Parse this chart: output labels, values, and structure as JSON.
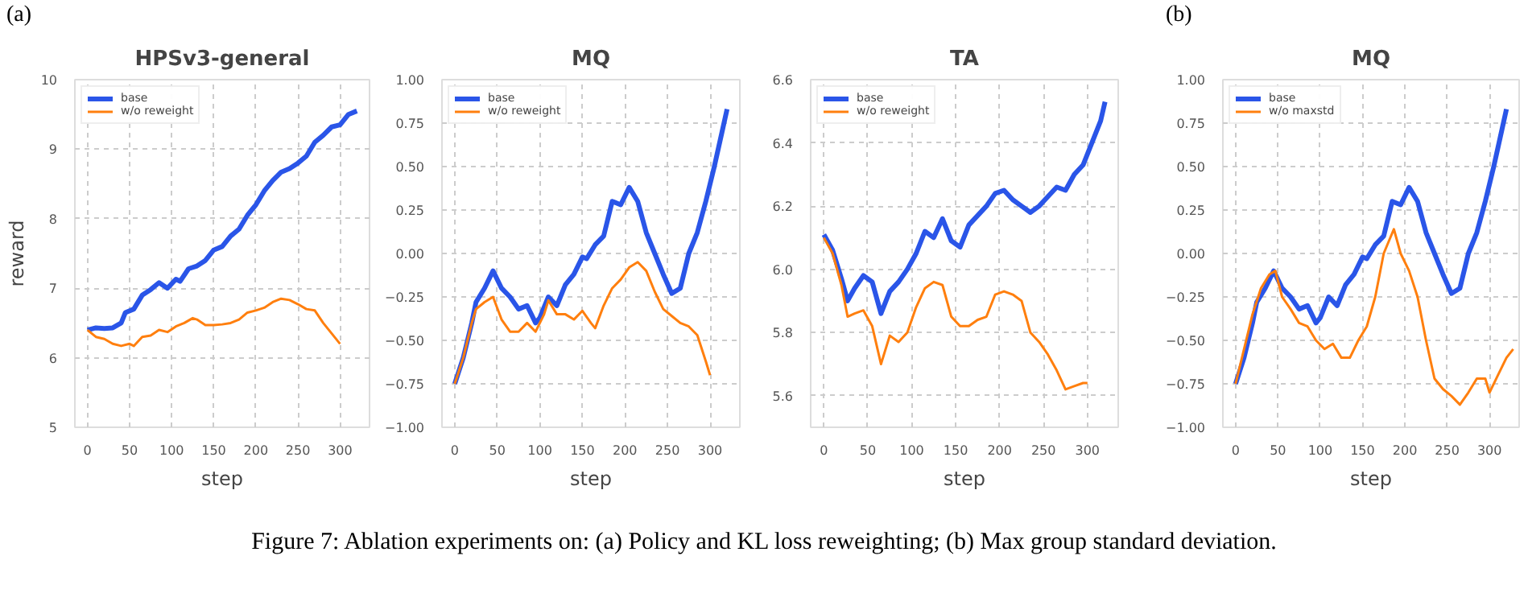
{
  "chart_data": [
    {
      "type": "line",
      "title": "HPSv3-general",
      "xlabel": "step",
      "ylabel": "reward",
      "annotations": [
        "(a)"
      ],
      "xlim": [
        -15,
        335
      ],
      "ylim": [
        5,
        10
      ],
      "xticks": [
        0,
        50,
        100,
        150,
        200,
        250,
        300
      ],
      "yticks": [
        5,
        6,
        7,
        8,
        9,
        10
      ],
      "grid": true,
      "legend": "top left",
      "line_style": "solid",
      "marker": "none",
      "series": [
        {
          "name": "base",
          "color": "#2a55e8",
          "x": [
            0,
            10,
            20,
            30,
            40,
            45,
            55,
            65,
            75,
            85,
            95,
            105,
            110,
            120,
            130,
            140,
            150,
            160,
            170,
            180,
            190,
            200,
            210,
            220,
            230,
            240,
            250,
            260,
            270,
            280,
            290,
            300,
            310,
            320
          ],
          "values": [
            6.4,
            6.43,
            6.42,
            6.43,
            6.5,
            6.65,
            6.7,
            6.9,
            6.98,
            7.08,
            7.0,
            7.13,
            7.1,
            7.28,
            7.32,
            7.4,
            7.55,
            7.6,
            7.75,
            7.85,
            8.05,
            8.2,
            8.4,
            8.55,
            8.67,
            8.72,
            8.8,
            8.9,
            9.1,
            9.2,
            9.32,
            9.35,
            9.5,
            9.55
          ]
        },
        {
          "name": "w/o reweight",
          "color": "#ff7f0e",
          "x": [
            0,
            10,
            20,
            30,
            40,
            50,
            55,
            65,
            75,
            85,
            95,
            105,
            115,
            125,
            130,
            140,
            150,
            160,
            170,
            180,
            190,
            200,
            210,
            220,
            230,
            240,
            250,
            260,
            270,
            280,
            290,
            300
          ],
          "values": [
            6.4,
            6.3,
            6.27,
            6.2,
            6.17,
            6.2,
            6.17,
            6.3,
            6.32,
            6.4,
            6.37,
            6.45,
            6.5,
            6.57,
            6.55,
            6.47,
            6.47,
            6.48,
            6.5,
            6.55,
            6.65,
            6.68,
            6.72,
            6.8,
            6.85,
            6.83,
            6.77,
            6.7,
            6.68,
            6.5,
            6.35,
            6.2
          ]
        }
      ]
    },
    {
      "type": "line",
      "title": "MQ",
      "xlabel": "step",
      "xlim": [
        -15,
        335
      ],
      "ylim": [
        -1,
        1
      ],
      "xticks": [
        0,
        50,
        100,
        150,
        200,
        250,
        300
      ],
      "yticks": [
        {
          "value": -1,
          "label": "−1.00"
        },
        {
          "value": -0.75,
          "label": "−0.75"
        },
        {
          "value": -0.5,
          "label": "−0.50"
        },
        {
          "value": -0.25,
          "label": "−0.25"
        },
        {
          "value": 0,
          "label": "0.00"
        },
        {
          "value": 0.25,
          "label": "0.25"
        },
        {
          "value": 0.5,
          "label": "0.50"
        },
        {
          "value": 0.75,
          "label": "0.75"
        },
        {
          "value": 1,
          "label": "1.00"
        }
      ],
      "grid": true,
      "legend": "top left",
      "line_style": "solid",
      "marker": "none",
      "series": [
        {
          "name": "base",
          "color": "#2a55e8",
          "x": [
            0,
            10,
            20,
            25,
            35,
            45,
            55,
            65,
            75,
            85,
            95,
            100,
            110,
            120,
            130,
            140,
            150,
            155,
            165,
            175,
            185,
            195,
            205,
            215,
            225,
            235,
            245,
            255,
            265,
            275,
            285,
            295,
            305,
            315,
            320
          ],
          "values": [
            -0.75,
            -0.6,
            -0.4,
            -0.28,
            -0.2,
            -0.1,
            -0.2,
            -0.25,
            -0.32,
            -0.3,
            -0.4,
            -0.37,
            -0.25,
            -0.3,
            -0.18,
            -0.12,
            -0.02,
            -0.03,
            0.05,
            0.1,
            0.3,
            0.28,
            0.38,
            0.3,
            0.12,
            0.0,
            -0.12,
            -0.23,
            -0.2,
            0.0,
            0.12,
            0.3,
            0.5,
            0.72,
            0.83
          ]
        },
        {
          "name": "w/o reweight",
          "color": "#ff7f0e",
          "x": [
            0,
            10,
            20,
            25,
            35,
            45,
            55,
            65,
            75,
            85,
            95,
            105,
            110,
            120,
            130,
            140,
            150,
            160,
            165,
            175,
            185,
            195,
            205,
            215,
            225,
            235,
            245,
            255,
            265,
            275,
            285,
            295,
            300
          ],
          "values": [
            -0.75,
            -0.6,
            -0.4,
            -0.32,
            -0.28,
            -0.25,
            -0.38,
            -0.45,
            -0.45,
            -0.4,
            -0.45,
            -0.35,
            -0.27,
            -0.35,
            -0.35,
            -0.38,
            -0.33,
            -0.4,
            -0.43,
            -0.3,
            -0.2,
            -0.15,
            -0.08,
            -0.05,
            -0.1,
            -0.22,
            -0.32,
            -0.36,
            -0.4,
            -0.42,
            -0.47,
            -0.62,
            -0.7
          ]
        }
      ]
    },
    {
      "type": "line",
      "title": "TA",
      "xlabel": "step",
      "xlim": [
        -15,
        335
      ],
      "ylim": [
        5.5,
        6.6
      ],
      "xticks": [
        0,
        50,
        100,
        150,
        200,
        250,
        300
      ],
      "yticks": [
        5.6,
        5.8,
        {
          "value": 6,
          "label": "6.0"
        },
        6.2,
        6.4,
        6.6
      ],
      "grid": true,
      "legend": "top left",
      "line_style": "solid",
      "marker": "none",
      "series": [
        {
          "name": "base",
          "color": "#2a55e8",
          "x": [
            0,
            10,
            20,
            27,
            35,
            45,
            55,
            65,
            75,
            85,
            95,
            105,
            115,
            125,
            135,
            145,
            155,
            165,
            175,
            185,
            195,
            205,
            215,
            225,
            235,
            245,
            255,
            265,
            275,
            285,
            295,
            305,
            315,
            320
          ],
          "values": [
            6.11,
            6.06,
            5.97,
            5.9,
            5.94,
            5.98,
            5.96,
            5.86,
            5.93,
            5.96,
            6.0,
            6.05,
            6.12,
            6.1,
            6.16,
            6.09,
            6.07,
            6.14,
            6.17,
            6.2,
            6.24,
            6.25,
            6.22,
            6.2,
            6.18,
            6.2,
            6.23,
            6.26,
            6.25,
            6.3,
            6.33,
            6.4,
            6.47,
            6.53
          ]
        },
        {
          "name": "w/o reweight",
          "color": "#ff7f0e",
          "x": [
            0,
            10,
            20,
            27,
            35,
            45,
            55,
            65,
            75,
            85,
            95,
            105,
            115,
            125,
            135,
            145,
            155,
            165,
            175,
            185,
            195,
            205,
            215,
            225,
            235,
            245,
            255,
            265,
            275,
            285,
            295,
            300
          ],
          "values": [
            6.1,
            6.05,
            5.95,
            5.85,
            5.86,
            5.87,
            5.82,
            5.7,
            5.79,
            5.77,
            5.8,
            5.88,
            5.94,
            5.96,
            5.95,
            5.85,
            5.82,
            5.82,
            5.84,
            5.85,
            5.92,
            5.93,
            5.92,
            5.9,
            5.8,
            5.77,
            5.73,
            5.68,
            5.62,
            5.63,
            5.64,
            5.64
          ]
        }
      ]
    },
    {
      "type": "line",
      "title": "MQ",
      "xlabel": "step",
      "annotations": [
        "(b)",
        "Figure 7: Ablation experiments on: (a) Policy and KL loss reweighting; (b) Max group standard deviation."
      ],
      "xlim": [
        -15,
        335
      ],
      "ylim": [
        -1,
        1
      ],
      "xticks": [
        0,
        50,
        100,
        150,
        200,
        250,
        300
      ],
      "yticks": [
        {
          "value": -1,
          "label": "−1.00"
        },
        {
          "value": -0.75,
          "label": "−0.75"
        },
        {
          "value": -0.5,
          "label": "−0.50"
        },
        {
          "value": -0.25,
          "label": "−0.25"
        },
        {
          "value": 0,
          "label": "0.00"
        },
        {
          "value": 0.25,
          "label": "0.25"
        },
        {
          "value": 0.5,
          "label": "0.50"
        },
        {
          "value": 0.75,
          "label": "0.75"
        },
        {
          "value": 1,
          "label": "1.00"
        }
      ],
      "grid": true,
      "legend": "top left",
      "line_style": "solid",
      "marker": "none",
      "series": [
        {
          "name": "base",
          "color": "#2a55e8",
          "x": [
            0,
            10,
            20,
            25,
            35,
            45,
            55,
            65,
            75,
            85,
            95,
            100,
            110,
            120,
            130,
            140,
            150,
            155,
            165,
            175,
            185,
            195,
            205,
            215,
            225,
            235,
            245,
            255,
            265,
            275,
            285,
            295,
            305,
            315,
            320
          ],
          "values": [
            -0.75,
            -0.6,
            -0.4,
            -0.28,
            -0.2,
            -0.1,
            -0.2,
            -0.25,
            -0.32,
            -0.3,
            -0.4,
            -0.37,
            -0.25,
            -0.3,
            -0.18,
            -0.12,
            -0.02,
            -0.03,
            0.05,
            0.1,
            0.3,
            0.28,
            0.38,
            0.3,
            0.12,
            0.0,
            -0.12,
            -0.23,
            -0.2,
            0.0,
            0.12,
            0.3,
            0.5,
            0.72,
            0.83
          ]
        },
        {
          "name": "w/o maxstd",
          "color": "#ff7f0e",
          "x": [
            0,
            10,
            20,
            30,
            40,
            47,
            55,
            65,
            75,
            85,
            95,
            105,
            115,
            125,
            135,
            145,
            155,
            165,
            175,
            187,
            195,
            205,
            215,
            225,
            235,
            245,
            255,
            265,
            275,
            285,
            295,
            300,
            310,
            320,
            328
          ],
          "values": [
            -0.75,
            -0.55,
            -0.35,
            -0.2,
            -0.12,
            -0.1,
            -0.25,
            -0.32,
            -0.4,
            -0.42,
            -0.5,
            -0.55,
            -0.52,
            -0.6,
            -0.6,
            -0.5,
            -0.42,
            -0.25,
            0.0,
            0.14,
            0.0,
            -0.1,
            -0.25,
            -0.5,
            -0.72,
            -0.78,
            -0.82,
            -0.87,
            -0.8,
            -0.72,
            -0.72,
            -0.8,
            -0.7,
            -0.6,
            -0.55
          ]
        }
      ]
    }
  ]
}
